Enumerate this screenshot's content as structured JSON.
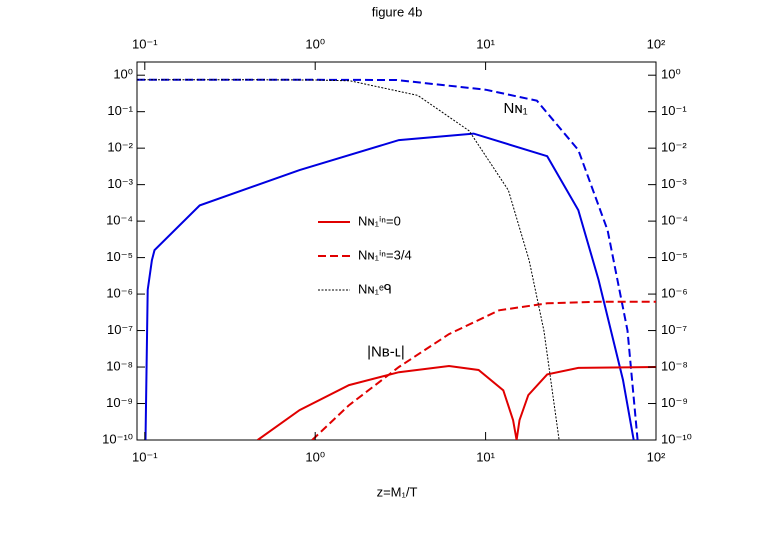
{
  "chart_data": {
    "type": "line",
    "title": "figure 4b",
    "x_label": "z=M₁/T",
    "log_x": true,
    "log_y": true,
    "xlim": [
      0.09,
      100
    ],
    "ylim": [
      1e-10,
      2.3
    ],
    "xticks": [
      {
        "value": 0.1,
        "label": "10⁻¹"
      },
      {
        "value": 1,
        "label": "10⁰"
      },
      {
        "value": 10,
        "label": "10¹"
      },
      {
        "value": 100,
        "label": "10²"
      }
    ],
    "yticks": [
      {
        "value": 1e-10,
        "label": "10⁻¹⁰"
      },
      {
        "value": 1e-09,
        "label": "10⁻⁹"
      },
      {
        "value": 1e-08,
        "label": "10⁻⁸"
      },
      {
        "value": 1e-07,
        "label": "10⁻⁷"
      },
      {
        "value": 1e-06,
        "label": "10⁻⁶"
      },
      {
        "value": 1e-05,
        "label": "10⁻⁵"
      },
      {
        "value": 0.0001,
        "label": "10⁻⁴"
      },
      {
        "value": 0.001,
        "label": "10⁻³"
      },
      {
        "value": 0.01,
        "label": "10⁻²"
      },
      {
        "value": 0.1,
        "label": "10⁻¹"
      },
      {
        "value": 1,
        "label": "10⁰"
      }
    ],
    "series": [
      {
        "name": "Nɴ₁ⁱⁿ=0",
        "color": "#e00000",
        "style": "solid",
        "x": [
          0.46,
          0.81,
          1.58,
          3.1,
          6.1,
          9.1,
          12.7,
          14.5,
          15.2,
          15.8,
          17.8,
          23,
          35,
          100
        ],
        "values": [
          1e-10,
          6.6e-10,
          3.2e-09,
          7.2e-09,
          1.07e-08,
          8.3e-09,
          2.3e-09,
          3.5e-10,
          1e-10,
          3.5e-10,
          1.7e-09,
          6.3e-09,
          9.5e-09,
          1e-08
        ]
      },
      {
        "name": "Nɴ₁ⁱⁿ=3/4",
        "color": "#e00000",
        "style": "dashed",
        "x": [
          0.96,
          1.58,
          3.1,
          6.1,
          12,
          23,
          46,
          100
        ],
        "values": [
          1e-10,
          9e-10,
          1e-08,
          8e-08,
          3.6e-07,
          5.6e-07,
          6.2e-07,
          6.2e-07
        ]
      },
      {
        "name": "Nɴ₁ᵉᑫ",
        "color": "#000000",
        "style": "dotted",
        "x": [
          0.09,
          0.5,
          1,
          1.6,
          4,
          8,
          13.6,
          18,
          22,
          27
        ],
        "values": [
          0.75,
          0.75,
          0.74,
          0.7,
          0.28,
          0.03,
          0.0007,
          8.5e-06,
          1e-07,
          1e-10
        ]
      }
    ],
    "curves": [
      {
        "color": "#0000e0",
        "style": "solid",
        "x": [
          0.101,
          0.104,
          0.11,
          0.114,
          0.21,
          0.81,
          3.1,
          8.5,
          23,
          35,
          46,
          64,
          74
        ],
        "values": [
          1e-10,
          1.3e-06,
          8.5e-06,
          1.6e-05,
          0.00027,
          0.0025,
          0.0166,
          0.025,
          0.006,
          0.0002,
          2.5e-06,
          4.4e-09,
          1e-10
        ]
      },
      {
        "color": "#0000e0",
        "style": "dashed",
        "x": [
          0.09,
          1,
          3,
          10,
          20,
          35,
          52,
          68,
          78
        ],
        "values": [
          0.75,
          0.75,
          0.74,
          0.4,
          0.2,
          0.0089,
          5.6e-05,
          1e-07,
          1e-10
        ]
      }
    ],
    "annotations": [
      {
        "text": "Nɴ₁",
        "x": 15,
        "y": 0.12
      },
      {
        "text": "|Nʙ-ʟ|",
        "x": 2.6,
        "y": 2.5e-08
      }
    ],
    "legend": "center"
  }
}
